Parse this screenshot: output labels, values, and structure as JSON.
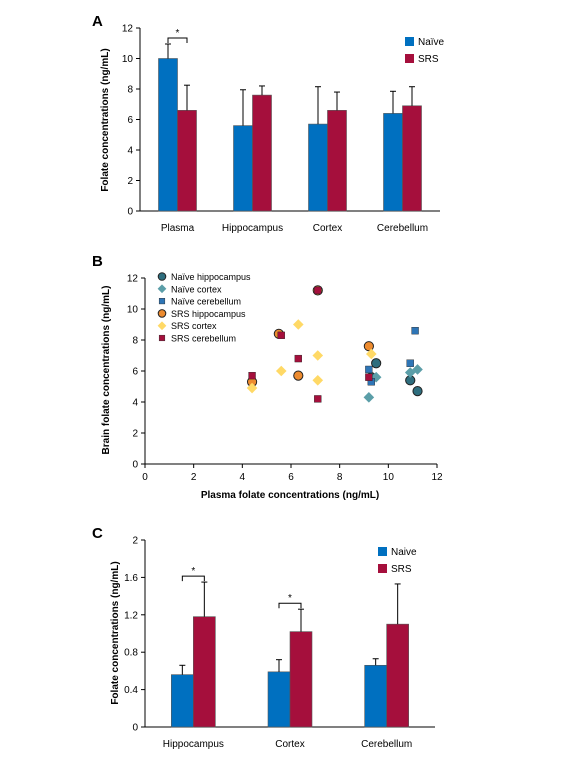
{
  "chart_data": [
    {
      "panel": "A",
      "type": "bar",
      "ylabel": "Folate concentrations (ng/mL)",
      "categories": [
        "Plasma",
        "Hippocampus",
        "Cortex",
        "Cerebellum"
      ],
      "yticks": [
        "0",
        "2",
        "4",
        "6",
        "8",
        "10",
        "12"
      ],
      "ylim": [
        0,
        12
      ],
      "series": [
        {
          "name": "Naïve",
          "color": "#0070C0",
          "values": [
            10.0,
            5.6,
            5.7,
            6.4
          ],
          "errors": [
            0.95,
            2.35,
            2.45,
            1.45
          ]
        },
        {
          "name": "SRS",
          "color": "#A50F3C",
          "values": [
            6.6,
            7.6,
            6.6,
            6.9
          ],
          "errors": [
            1.65,
            0.6,
            1.2,
            1.25
          ]
        }
      ],
      "significance": [
        {
          "category": "Plasma",
          "label": "*"
        }
      ],
      "legend_position": "top-right"
    },
    {
      "panel": "B",
      "type": "scatter",
      "xlabel": "Plasma folate concentrations (ng/mL)",
      "ylabel": "Brain folate concentrations (ng/mL)",
      "xticks": [
        "0",
        "2",
        "4",
        "6",
        "8",
        "10",
        "12"
      ],
      "yticks": [
        "0",
        "2",
        "4",
        "6",
        "8",
        "10",
        "12"
      ],
      "xlim": [
        0,
        12
      ],
      "ylim": [
        0,
        12
      ],
      "series": [
        {
          "name": "Naïve hippocampus",
          "marker": "circle",
          "color": "#2E6E7E",
          "points": [
            [
              9.5,
              6.5
            ],
            [
              10.9,
              5.4
            ],
            [
              11.2,
              4.7
            ],
            [
              9.3,
              5.6
            ]
          ]
        },
        {
          "name": "Naïve cortex",
          "marker": "diamond",
          "color": "#5B9EA8",
          "points": [
            [
              9.2,
              4.3
            ],
            [
              9.5,
              5.6
            ],
            [
              10.9,
              5.9
            ],
            [
              11.2,
              6.1
            ]
          ]
        },
        {
          "name": "Naïve cerebellum",
          "marker": "square",
          "color": "#2E75B6",
          "points": [
            [
              11.1,
              8.6
            ],
            [
              10.9,
              6.5
            ],
            [
              9.2,
              6.1
            ],
            [
              9.3,
              5.3
            ]
          ]
        },
        {
          "name": "SRS hippocampus",
          "marker": "circle",
          "color": "#ED8B2F",
          "points": [
            [
              9.2,
              7.6
            ],
            [
              5.5,
              8.4
            ],
            [
              6.3,
              5.7
            ],
            [
              4.4,
              5.3
            ],
            [
              7.1,
              11.2
            ]
          ]
        },
        {
          "name": "SRS cortex",
          "marker": "diamond",
          "color": "#FFD966",
          "points": [
            [
              6.3,
              9.0
            ],
            [
              7.1,
              7.0
            ],
            [
              9.3,
              7.1
            ],
            [
              5.6,
              6.0
            ],
            [
              7.1,
              5.4
            ],
            [
              4.4,
              4.9
            ]
          ]
        },
        {
          "name": "SRS cerebellum",
          "marker": "square",
          "color": "#A50F3C",
          "points": [
            [
              7.1,
              11.2
            ],
            [
              5.6,
              8.3
            ],
            [
              6.3,
              6.8
            ],
            [
              9.2,
              5.6
            ],
            [
              4.4,
              5.7
            ],
            [
              7.1,
              4.2
            ]
          ]
        }
      ],
      "legend_position": "top-left"
    },
    {
      "panel": "C",
      "type": "bar",
      "ylabel": "Folate concentrations (ng/mL)",
      "categories": [
        "Hippocampus",
        "Cortex",
        "Cerebellum"
      ],
      "yticks": [
        "0",
        "0.4",
        "0.8",
        "1.2",
        "1.6",
        "2"
      ],
      "ylim": [
        0,
        2
      ],
      "series": [
        {
          "name": "Naive",
          "color": "#0070C0",
          "values": [
            0.56,
            0.59,
            0.66
          ],
          "errors": [
            0.1,
            0.13,
            0.07
          ]
        },
        {
          "name": "SRS",
          "color": "#A50F3C",
          "values": [
            1.18,
            1.02,
            1.1
          ],
          "errors": [
            0.37,
            0.24,
            0.43
          ]
        }
      ],
      "significance": [
        {
          "category": "Hippocampus",
          "label": "*"
        },
        {
          "category": "Cortex",
          "label": "*"
        }
      ],
      "legend_position": "top-right"
    }
  ]
}
